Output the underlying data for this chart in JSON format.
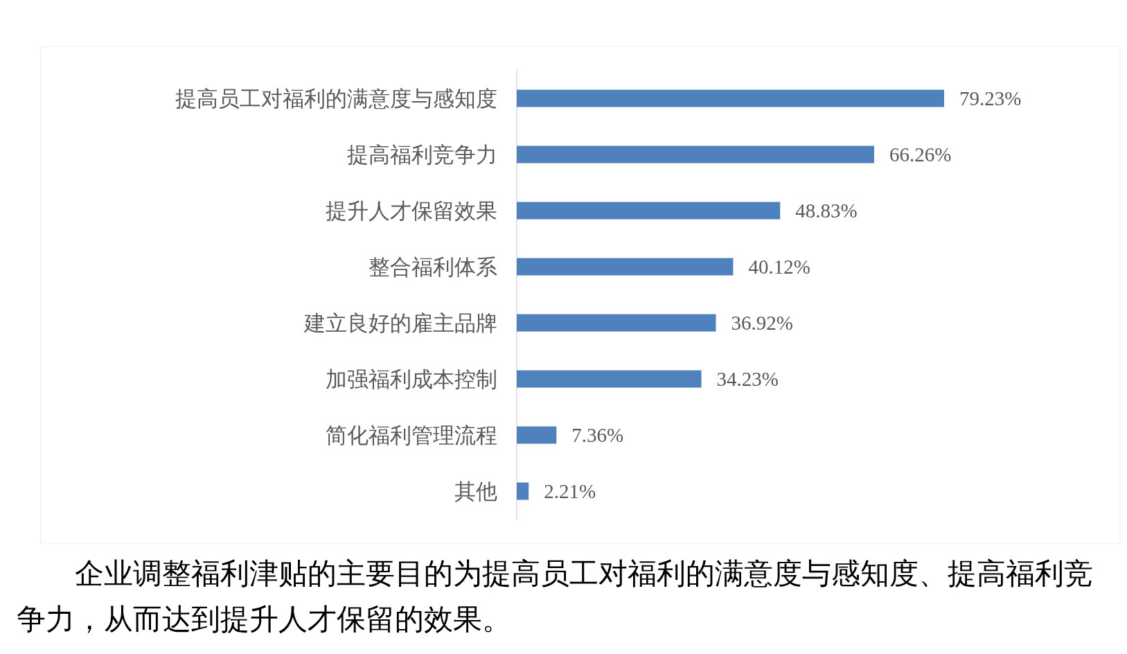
{
  "chart_data": {
    "type": "bar",
    "orientation": "horizontal",
    "color": "#4f81bd",
    "categories": [
      "提高员工对福利的满意度与感知度",
      "提高福利竞争力",
      "提升人才保留效果",
      "整合福利体系",
      "建立良好的雇主品牌",
      "加强福利成本控制",
      "简化福利管理流程",
      "其他"
    ],
    "values": [
      79.23,
      66.26,
      48.83,
      40.12,
      36.92,
      34.23,
      7.36,
      2.21
    ],
    "value_labels": [
      "79.23%",
      "66.26%",
      "48.83%",
      "40.12%",
      "36.92%",
      "34.23%",
      "7.36%",
      "2.21%"
    ],
    "annotations": [
      "企业调整福利津贴的主要目的为提高员工对福利的满意度与感知度、提高福利竞争力，从而达到提升人才保留的效果。"
    ]
  }
}
